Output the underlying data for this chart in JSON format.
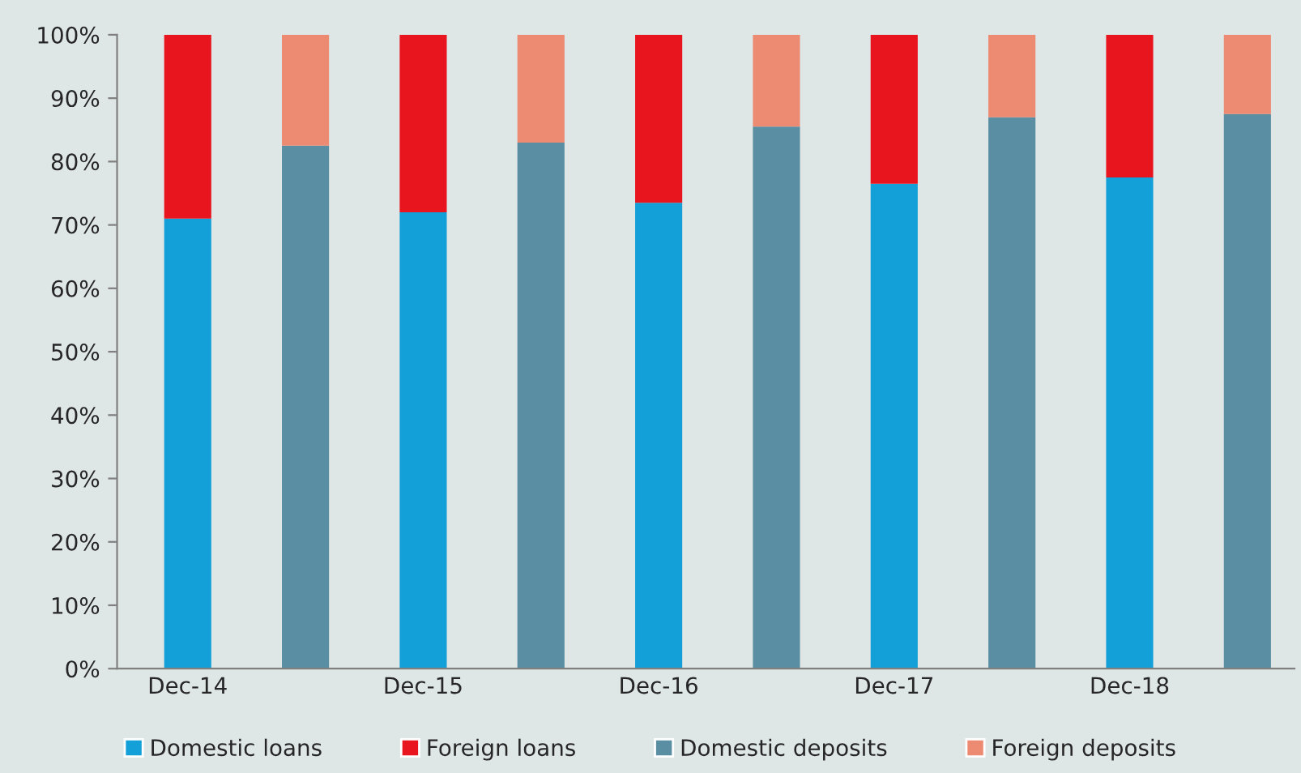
{
  "chart_data": {
    "type": "bar",
    "stacked": true,
    "categories": [
      "Dec-14",
      null,
      "Dec-15",
      null,
      "Dec-16",
      null,
      "Dec-17",
      null,
      "Dec-18",
      null
    ],
    "series": [
      {
        "name": "Domestic loans",
        "color": "#13a0d8",
        "values": [
          71,
          null,
          72,
          null,
          73.5,
          null,
          76.5,
          null,
          77.5,
          null
        ]
      },
      {
        "name": "Foreign loans",
        "color": "#e8151f",
        "values": [
          29,
          null,
          28,
          null,
          26.5,
          null,
          23.5,
          null,
          22.5,
          null
        ]
      },
      {
        "name": "Domestic deposits",
        "color": "#5a8fa3",
        "values": [
          null,
          82.5,
          null,
          83,
          null,
          85.5,
          null,
          87,
          null,
          87.5
        ]
      },
      {
        "name": "Foreign deposits",
        "color": "#ec8a72",
        "values": [
          null,
          17.5,
          null,
          17,
          null,
          14.5,
          null,
          13,
          null,
          12.5
        ]
      }
    ],
    "ylim": [
      0,
      100
    ],
    "yticks": [
      {
        "value": 0,
        "label": "0%"
      },
      {
        "value": 10,
        "label": "10%"
      },
      {
        "value": 20,
        "label": "20%"
      },
      {
        "value": 30,
        "label": "30%"
      },
      {
        "value": 40,
        "label": "40%"
      },
      {
        "value": 50,
        "label": "50%"
      },
      {
        "value": 60,
        "label": "60%"
      },
      {
        "value": 70,
        "label": "70%"
      },
      {
        "value": 80,
        "label": "80%"
      },
      {
        "value": 90,
        "label": "90%"
      },
      {
        "value": 100,
        "label": "100%"
      }
    ],
    "grid": false,
    "legend": "bottom"
  }
}
